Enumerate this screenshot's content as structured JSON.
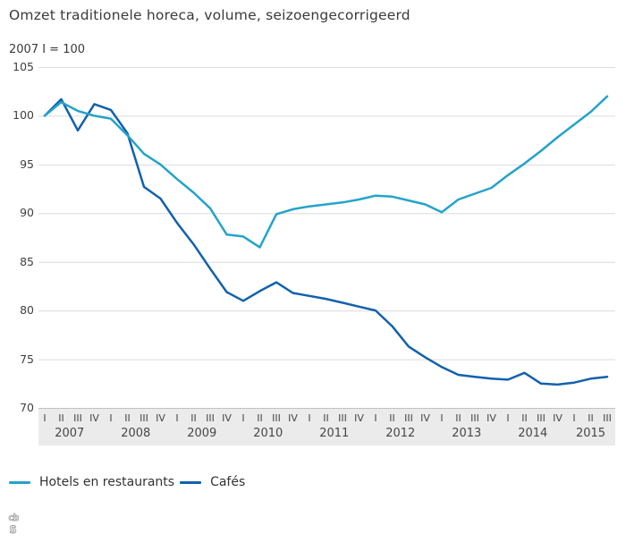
{
  "title": "Omzet traditionele horeca, volume, seizoengecorrigeerd",
  "unit_label": "2007 I = 100",
  "legend": [
    {
      "label": "Hotels en restaurants",
      "color": "#24a3c9"
    },
    {
      "label": "Cafés",
      "color": "#1261ad"
    }
  ],
  "footer": {
    "logo": "cbs-logo"
  },
  "chart_data": {
    "type": "line",
    "title": "Omzet traditionele horeca, volume, seizoengecorrigeerd",
    "subtitle": "2007 I = 100",
    "x_unit": "quarter",
    "x_labels": [
      "I",
      "II",
      "III",
      "IV",
      "I",
      "II",
      "III",
      "IV",
      "I",
      "II",
      "III",
      "IV",
      "I",
      "II",
      "III",
      "IV",
      "I",
      "II",
      "III",
      "IV",
      "I",
      "II",
      "III",
      "IV",
      "I",
      "II",
      "III",
      "IV",
      "I",
      "II",
      "III",
      "IV",
      "I",
      "II",
      "III"
    ],
    "years": [
      {
        "label": "2007",
        "quarters": 4
      },
      {
        "label": "2008",
        "quarters": 4
      },
      {
        "label": "2009",
        "quarters": 4
      },
      {
        "label": "2010",
        "quarters": 4
      },
      {
        "label": "2011",
        "quarters": 4
      },
      {
        "label": "2012",
        "quarters": 4
      },
      {
        "label": "2013",
        "quarters": 4
      },
      {
        "label": "2014",
        "quarters": 4
      },
      {
        "label": "2015",
        "quarters": 3
      }
    ],
    "series": [
      {
        "name": "Hotels en restaurants",
        "color": "#24a3c9",
        "values": [
          100,
          101.4,
          100.5,
          100,
          99.7,
          98,
          96.1,
          95,
          93.5,
          92.1,
          90.5,
          87.8,
          87.6,
          86.5,
          89.9,
          90.4,
          90.7,
          90.9,
          91.1,
          91.4,
          91.8,
          91.7,
          91.3,
          90.9,
          90.1,
          91.4,
          92,
          92.6,
          93.9,
          95.1,
          96.4,
          97.8,
          99.1,
          100.4,
          102
        ]
      },
      {
        "name": "Cafés",
        "color": "#1261ad",
        "values": [
          100,
          101.7,
          98.5,
          101.2,
          100.6,
          98.2,
          92.7,
          91.5,
          89,
          86.8,
          84.3,
          81.9,
          81,
          82,
          82.9,
          81.8,
          81.5,
          81.2,
          80.8,
          80.4,
          80,
          78.4,
          76.3,
          75.2,
          74.2,
          73.4,
          73.2,
          73,
          72.9,
          73.6,
          72.5,
          72.4,
          72.6,
          73,
          73.2
        ]
      }
    ],
    "ylim": [
      70,
      105
    ],
    "yticks": [
      105,
      100,
      95,
      90,
      85,
      80,
      75,
      70
    ],
    "grid": true,
    "legend_position": "bottom"
  }
}
